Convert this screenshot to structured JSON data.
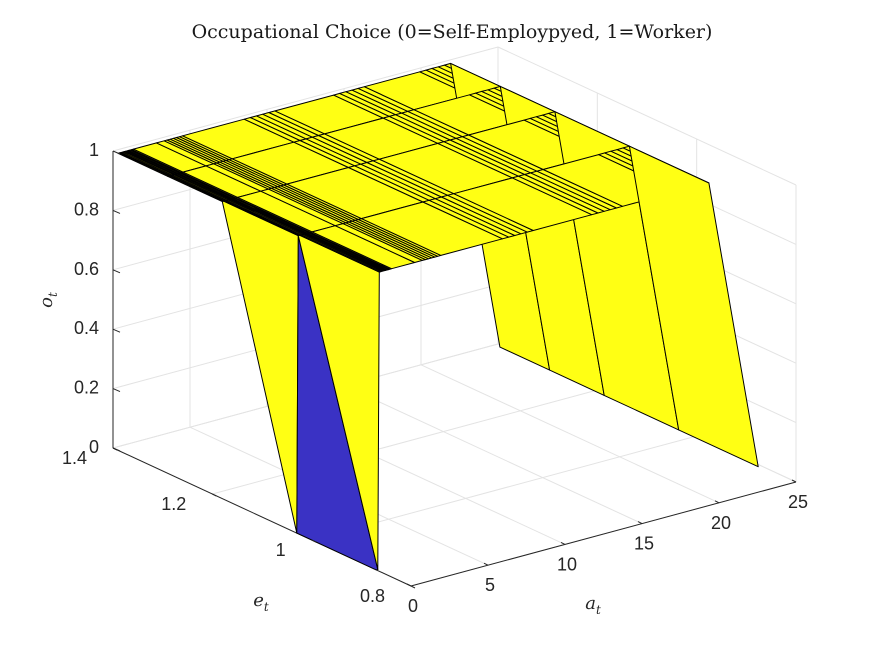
{
  "chart_data": {
    "type": "surface",
    "title": "Occupational Choice (0=Self-Employpyed, 1=Worker)",
    "xlabel": {
      "base": "a",
      "sub": "t"
    },
    "ylabel": {
      "base": "e",
      "sub": "t"
    },
    "zlabel": {
      "base": "o",
      "sub": "t"
    },
    "xlim": [
      0,
      25
    ],
    "ylim": [
      0.8,
      1.4
    ],
    "zlim": [
      0,
      1
    ],
    "xticks": [
      "0",
      "5",
      "10",
      "15",
      "20",
      "25"
    ],
    "yticks": [
      "0.8",
      "1",
      "1.2",
      "1.4"
    ],
    "zticks": [
      "0",
      "0.2",
      "0.4",
      "0.6",
      "0.8",
      "1"
    ],
    "grid": true,
    "colors": {
      "worker": "#ffff14",
      "self_employed": "#3a32c4",
      "edge": "#000000"
    },
    "e_grid": [
      1.39,
      1.29,
      1.18,
      1.03,
      0.87
    ],
    "a_grid": [
      0,
      0.1,
      0.2,
      0.3,
      0.4,
      0.5,
      0.6,
      0.7,
      0.8,
      0.9,
      1.0,
      2.5,
      3.0,
      3.2,
      3.4,
      3.6,
      3.8,
      4.0,
      4.2,
      8.2,
      8.6,
      9.0,
      9.4,
      9.8,
      10.2,
      14.0,
      14.4,
      14.8,
      15.2,
      15.6,
      16.0,
      19.6,
      20.0,
      20.4,
      20.8,
      21.2,
      21.6,
      24.8
    ],
    "occupation": [
      [
        1,
        1,
        1,
        1,
        1,
        1,
        1,
        1,
        1,
        1,
        1,
        1,
        1,
        1,
        1,
        1,
        1,
        1,
        1,
        1,
        1,
        1,
        1,
        1,
        1,
        1,
        1,
        1,
        1,
        1,
        1,
        1,
        1,
        1,
        1,
        1,
        1,
        0
      ],
      [
        1,
        1,
        1,
        1,
        1,
        1,
        1,
        1,
        1,
        1,
        1,
        1,
        1,
        1,
        1,
        1,
        1,
        1,
        1,
        1,
        1,
        1,
        1,
        1,
        1,
        1,
        1,
        1,
        1,
        1,
        1,
        1,
        1,
        1,
        1,
        1,
        1,
        0
      ],
      [
        1,
        1,
        1,
        1,
        1,
        1,
        1,
        1,
        1,
        1,
        1,
        1,
        1,
        1,
        1,
        1,
        1,
        1,
        1,
        1,
        1,
        1,
        1,
        1,
        1,
        1,
        1,
        1,
        1,
        1,
        1,
        1,
        1,
        1,
        1,
        1,
        1,
        0
      ],
      [
        0,
        1,
        1,
        1,
        1,
        1,
        1,
        1,
        1,
        1,
        1,
        1,
        1,
        1,
        1,
        1,
        1,
        1,
        1,
        1,
        1,
        1,
        1,
        1,
        1,
        1,
        1,
        1,
        1,
        1,
        1,
        1,
        1,
        1,
        1,
        1,
        1,
        0
      ],
      [
        0,
        0,
        1,
        1,
        1,
        1,
        1,
        1,
        1,
        1,
        1,
        1,
        1,
        1,
        1,
        1,
        1,
        1,
        1,
        1,
        1,
        1,
        1,
        1,
        1,
        1,
        1,
        1,
        1,
        1,
        1,
        1,
        1,
        1,
        1,
        1,
        1,
        0
      ]
    ]
  }
}
